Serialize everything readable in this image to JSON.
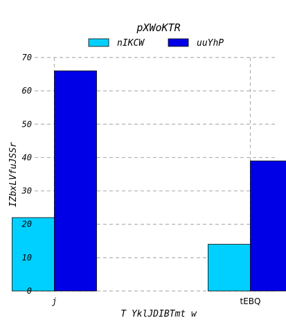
{
  "chart_data": {
    "type": "bar",
    "title": "pXWoKTR",
    "xlabel": "T YklJDIBTmt w",
    "ylabel": "IZbxLVfuJSSr",
    "categories": [
      "j",
      "tEBQ"
    ],
    "series": [
      {
        "name": "nIKCW",
        "values": [
          22,
          14
        ],
        "color": "#00d0ff"
      },
      {
        "name": "uuYhP",
        "values": [
          66,
          39
        ],
        "color": "#0000e6"
      }
    ],
    "ylim": [
      0,
      70
    ],
    "yticks": [
      0,
      10,
      20,
      30,
      40,
      50,
      60,
      70
    ],
    "grid": true,
    "legend_position": "top-center"
  }
}
